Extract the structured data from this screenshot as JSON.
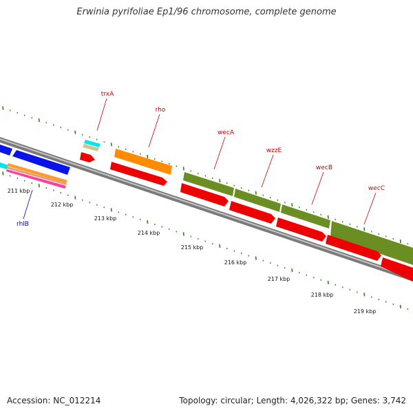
{
  "title": "Erwinia pyrifoliae Ep1/96 chromosome, complete genome",
  "footer": {
    "accession": "Accession: NC_012214",
    "summary": "Topology: circular; Length: 4,026,322 bp; Genes: 3,742"
  },
  "colors": {
    "backbone": "#777777",
    "tick": "#2e7d1e",
    "gene_label": "#cc0000",
    "rhlB_label": "#0000cc",
    "cds": "#ee0000",
    "blue_feature": "#0a14e8",
    "orange_feature": "#ff8c00",
    "olive_feature": "#6b8e23",
    "cyan_feature": "#00e5ee",
    "tan_feature": "#c8c890"
  },
  "axis": {
    "unit": "kbp",
    "tick_labels": [
      "211 kbp",
      "212 kbp",
      "213 kbp",
      "214 kbp",
      "215 kbp",
      "216 kbp",
      "217 kbp",
      "218 kbp",
      "219 kbp"
    ]
  },
  "genes": [
    {
      "name": "trxA",
      "color": "#cc0000"
    },
    {
      "name": "rho",
      "color": "#cc0000"
    },
    {
      "name": "wecA",
      "color": "#cc0000"
    },
    {
      "name": "wzzE",
      "color": "#cc0000"
    },
    {
      "name": "wecB",
      "color": "#cc0000"
    },
    {
      "name": "wecC",
      "color": "#cc0000"
    },
    {
      "name": "rhlB",
      "color": "#0000cc"
    }
  ]
}
